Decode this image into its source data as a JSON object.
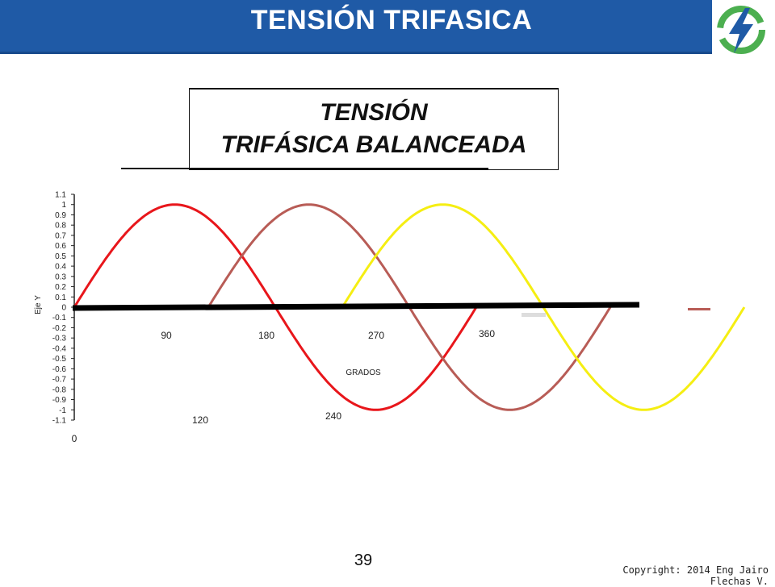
{
  "header": {
    "title": "TENSIÓN TRIFASICA"
  },
  "logo": {
    "icon": "lightning-bolt-icon",
    "colors": {
      "ring": "#4caf50",
      "bolt": "#1f5aa6"
    }
  },
  "chart_data": {
    "type": "line",
    "title_line1": "TENSIÓN",
    "title_line2": "TRIFÁSICA  BALANCEADA",
    "xlabel": "GRADOS",
    "ylabel": "Eje Y",
    "ylim": [
      -1.1,
      1.1
    ],
    "y_ticks": [
      "1.1",
      "1",
      "0.9",
      "0.8",
      "0.7",
      "0.6",
      "0.5",
      "0.4",
      "0.3",
      "0.2",
      "0.1",
      "0",
      "-0.1",
      "-0.2",
      "-0.3",
      "-0.4",
      "-0.5",
      "-0.6",
      "-0.7",
      "-0.8",
      "-0.9",
      "-1",
      "-1.1"
    ],
    "x_tick_labels": [
      "0",
      "90",
      "120",
      "180",
      "240",
      "270",
      "360"
    ],
    "xlim_degrees": [
      0,
      600
    ],
    "series": [
      {
        "color": "#e8161b",
        "phase_deg": 0,
        "x_start": 0,
        "x_end": 360
      },
      {
        "color": "#b85c56",
        "phase_deg": 120,
        "x_start": 120,
        "x_end": 480
      },
      {
        "color": "#f5ee12",
        "phase_deg": 240,
        "x_start": 240,
        "x_end": 600
      }
    ],
    "axis_line_color": "#000000"
  },
  "footer": {
    "page_number": "39",
    "copyright": "Copyright: 2014 Eng Jairo Flechas V."
  }
}
